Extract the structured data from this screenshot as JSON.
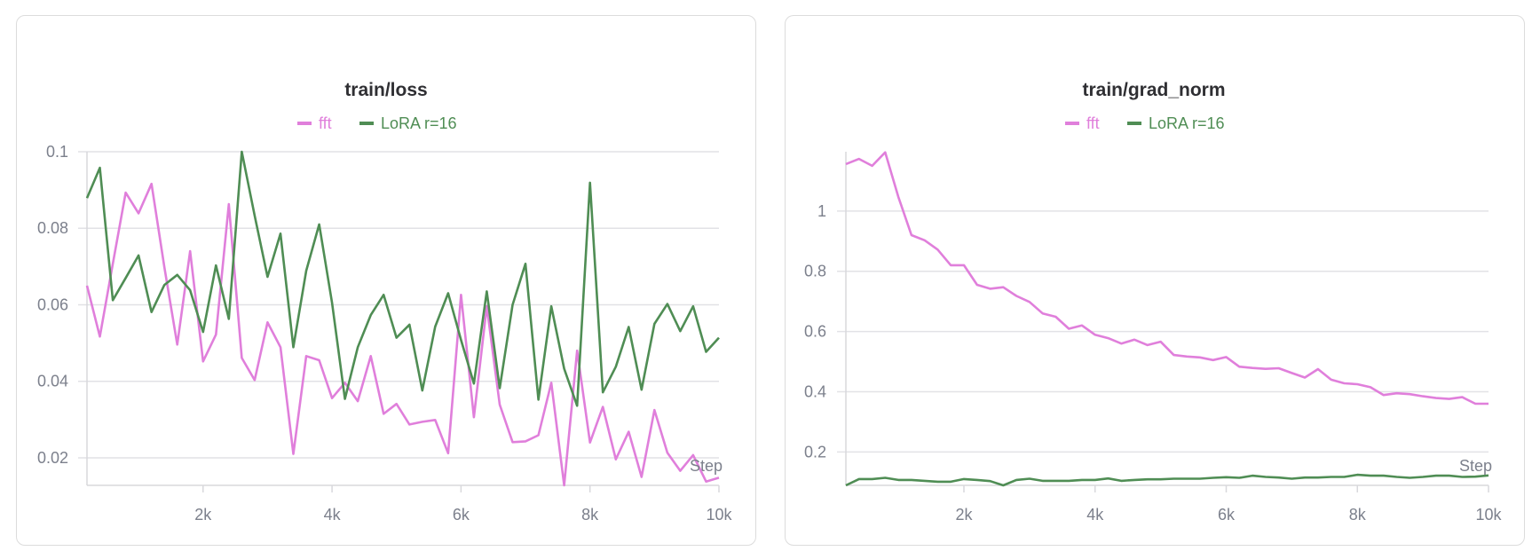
{
  "colors": {
    "fft": "#e07fdb",
    "lora": "#4f8d54"
  },
  "chart_data": [
    {
      "type": "line",
      "title": "train/loss",
      "xlabel": "Step",
      "ylabel": "",
      "xlim": [
        200,
        10000
      ],
      "ylim": [
        0.0128,
        0.1
      ],
      "xticks": [
        2000,
        4000,
        6000,
        8000,
        10000
      ],
      "xtick_labels": [
        "2k",
        "4k",
        "6k",
        "8k",
        "10k"
      ],
      "yticks": [
        0.02,
        0.04,
        0.06,
        0.08,
        0.1
      ],
      "ytick_labels": [
        "0.02",
        "0.04",
        "0.06",
        "0.08",
        "0.1"
      ],
      "grid": true,
      "legend": "top-center",
      "x_start": 200,
      "x_step": 200,
      "series": [
        {
          "name": "fft",
          "values": [
            0.065,
            0.0517,
            0.0707,
            0.0893,
            0.0839,
            0.0916,
            0.0698,
            0.0496,
            0.074,
            0.0452,
            0.0522,
            0.0863,
            0.0461,
            0.0403,
            0.0554,
            0.0489,
            0.021,
            0.0466,
            0.0455,
            0.0356,
            0.0396,
            0.0348,
            0.0466,
            0.0315,
            0.0341,
            0.0287,
            0.0294,
            0.0299,
            0.0212,
            0.0626,
            0.0306,
            0.0596,
            0.0339,
            0.0241,
            0.0243,
            0.0259,
            0.0396,
            0.0128,
            0.048,
            0.024,
            0.0333,
            0.0196,
            0.0268,
            0.015,
            0.0325,
            0.0213,
            0.0166,
            0.0207,
            0.0138,
            0.0148
          ]
        },
        {
          "name": "LoRA r=16",
          "values": [
            0.0879,
            0.0958,
            0.0612,
            0.067,
            0.0729,
            0.0581,
            0.0652,
            0.0678,
            0.0638,
            0.0529,
            0.0703,
            0.0563,
            0.1,
            0.0833,
            0.0673,
            0.0786,
            0.0489,
            0.0689,
            0.081,
            0.0605,
            0.0354,
            0.0489,
            0.0573,
            0.0626,
            0.0514,
            0.0548,
            0.0376,
            0.0543,
            0.063,
            0.0508,
            0.0394,
            0.0635,
            0.0382,
            0.06,
            0.0707,
            0.0352,
            0.0596,
            0.0433,
            0.0336,
            0.0919,
            0.0371,
            0.0438,
            0.0542,
            0.0378,
            0.055,
            0.0602,
            0.0531,
            0.0596,
            0.0477,
            0.0514
          ]
        }
      ]
    },
    {
      "type": "line",
      "title": "train/grad_norm",
      "xlabel": "Step",
      "ylabel": "",
      "xlim": [
        200,
        10000
      ],
      "ylim": [
        0.089,
        1.197
      ],
      "xticks": [
        2000,
        4000,
        6000,
        8000,
        10000
      ],
      "xtick_labels": [
        "2k",
        "4k",
        "6k",
        "8k",
        "10k"
      ],
      "yticks": [
        0.2,
        0.4,
        0.6,
        0.8,
        1
      ],
      "ytick_labels": [
        "0.2",
        "0.4",
        "0.6",
        "0.8",
        "1"
      ],
      "grid": true,
      "legend": "top-center",
      "x_start": 200,
      "x_step": 200,
      "series": [
        {
          "name": "fft",
          "values": [
            1.156,
            1.173,
            1.15,
            1.195,
            1.047,
            0.92,
            0.903,
            0.872,
            0.82,
            0.82,
            0.755,
            0.742,
            0.747,
            0.718,
            0.698,
            0.66,
            0.649,
            0.609,
            0.62,
            0.589,
            0.578,
            0.56,
            0.573,
            0.555,
            0.566,
            0.522,
            0.517,
            0.514,
            0.505,
            0.515,
            0.483,
            0.479,
            0.476,
            0.478,
            0.462,
            0.447,
            0.475,
            0.44,
            0.428,
            0.425,
            0.415,
            0.389,
            0.395,
            0.392,
            0.385,
            0.379,
            0.376,
            0.382,
            0.36,
            0.36
          ]
        },
        {
          "name": "LoRA r=16",
          "values": [
            0.089,
            0.11,
            0.11,
            0.114,
            0.107,
            0.107,
            0.104,
            0.101,
            0.101,
            0.11,
            0.107,
            0.103,
            0.089,
            0.107,
            0.111,
            0.104,
            0.104,
            0.104,
            0.107,
            0.107,
            0.112,
            0.104,
            0.107,
            0.109,
            0.109,
            0.111,
            0.111,
            0.111,
            0.114,
            0.116,
            0.114,
            0.121,
            0.117,
            0.115,
            0.111,
            0.115,
            0.115,
            0.117,
            0.117,
            0.124,
            0.121,
            0.121,
            0.117,
            0.114,
            0.117,
            0.121,
            0.121,
            0.117,
            0.118,
            0.122
          ]
        }
      ]
    }
  ]
}
